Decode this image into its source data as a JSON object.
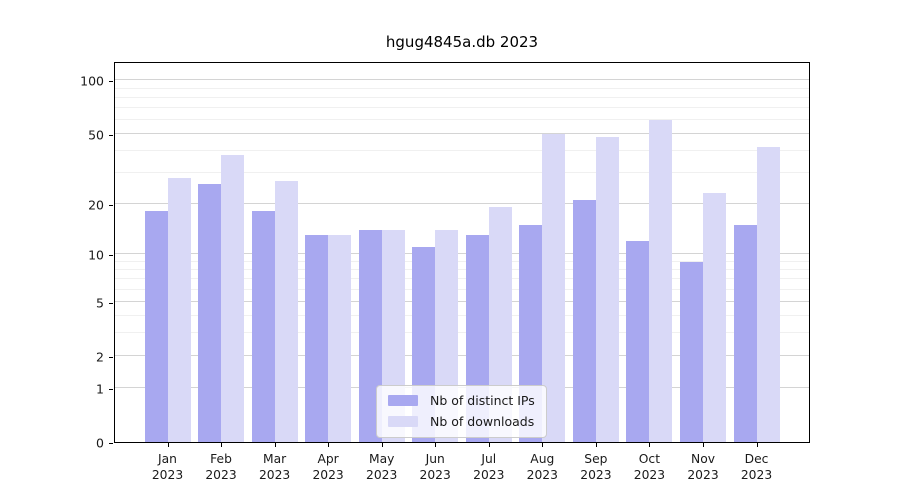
{
  "title": "hgug4845a.db 2023",
  "chart_data": {
    "type": "bar",
    "title": "hgug4845a.db 2023",
    "categories": [
      "Jan",
      "Feb",
      "Mar",
      "Apr",
      "May",
      "Jun",
      "Jul",
      "Aug",
      "Sep",
      "Oct",
      "Nov",
      "Dec"
    ],
    "year_label": "2023",
    "series": [
      {
        "name": "Nb of distinct IPs",
        "color": "#a8a8f0",
        "values": [
          18,
          26,
          18,
          13,
          14,
          11,
          13,
          15,
          21,
          12,
          9,
          15
        ]
      },
      {
        "name": "Nb of downloads",
        "color": "#d9d9f7",
        "values": [
          28,
          38,
          27,
          13,
          14,
          14,
          19,
          50,
          48,
          60,
          23,
          42
        ]
      }
    ],
    "xlabel": "",
    "ylabel": "",
    "y_axis": {
      "scale": "log1p",
      "tick_labels": [
        100,
        50,
        20,
        10,
        5,
        2,
        1,
        0
      ],
      "minor_gridlines": [
        3,
        4,
        6,
        7,
        8,
        9,
        30,
        40,
        60,
        70,
        80,
        90
      ],
      "ylim": [
        0,
        130
      ]
    },
    "grid": true,
    "legend_position": "bottom-center"
  }
}
